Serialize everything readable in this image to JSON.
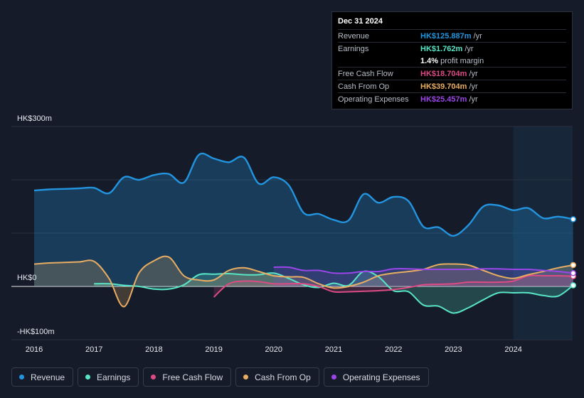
{
  "chart_data": {
    "type": "area",
    "x": [
      2016.0,
      2016.25,
      2016.5,
      2016.75,
      2017.0,
      2017.25,
      2017.5,
      2017.75,
      2018.0,
      2018.25,
      2018.5,
      2018.75,
      2019.0,
      2019.25,
      2019.5,
      2019.75,
      2020.0,
      2020.25,
      2020.5,
      2020.75,
      2021.0,
      2021.25,
      2021.5,
      2021.75,
      2022.0,
      2022.25,
      2022.5,
      2022.75,
      2023.0,
      2023.25,
      2023.5,
      2023.75,
      2024.0,
      2024.25,
      2024.5,
      2024.75,
      2025.0
    ],
    "series": [
      {
        "name": "Revenue",
        "color": "#2394df",
        "values": [
          180,
          182,
          183,
          184,
          185,
          175,
          205,
          200,
          209,
          211,
          195,
          247,
          240,
          233,
          242,
          193,
          205,
          190,
          138,
          136,
          125,
          124,
          173,
          157,
          168,
          160,
          112,
          111,
          95,
          115,
          150,
          152,
          143,
          147,
          128,
          131,
          126
        ]
      },
      {
        "name": "Earnings",
        "color": "#58e5c6",
        "values": [
          null,
          null,
          null,
          null,
          5,
          5,
          2,
          0,
          -5,
          -5,
          3,
          22,
          23,
          24,
          22,
          22,
          25,
          15,
          3,
          -2,
          6,
          2,
          28,
          18,
          -8,
          -10,
          -35,
          -37,
          -50,
          -40,
          -25,
          -12,
          -12,
          -12,
          -17,
          -18,
          2
        ]
      },
      {
        "name": "Free Cash Flow",
        "color": "#dd4b84",
        "values": [
          null,
          null,
          null,
          null,
          null,
          null,
          null,
          null,
          null,
          null,
          null,
          null,
          -20,
          5,
          10,
          9,
          5,
          5,
          5,
          0,
          -10,
          -10,
          -9,
          -8,
          -6,
          -2,
          3,
          4,
          5,
          8,
          8,
          8,
          10,
          20,
          20,
          20,
          19
        ]
      },
      {
        "name": "Cash From Op",
        "color": "#e9ad62",
        "values": [
          42,
          44,
          45,
          46,
          47,
          15,
          -38,
          25,
          48,
          55,
          20,
          12,
          12,
          30,
          35,
          28,
          20,
          18,
          17,
          5,
          -3,
          0,
          8,
          20,
          25,
          28,
          32,
          41,
          42,
          40,
          30,
          20,
          15,
          22,
          28,
          35,
          40
        ]
      },
      {
        "name": "Operating Expenses",
        "color": "#9b46e8",
        "values": [
          null,
          null,
          null,
          null,
          null,
          null,
          null,
          null,
          null,
          null,
          null,
          null,
          null,
          null,
          null,
          null,
          36,
          36,
          30,
          30,
          25,
          25,
          28,
          28,
          33,
          33,
          32,
          32,
          32,
          32,
          33,
          33,
          32,
          32,
          30,
          28,
          25
        ]
      }
    ],
    "x_ticks": [
      "2016",
      "2017",
      "2018",
      "2019",
      "2020",
      "2021",
      "2022",
      "2023",
      "2024"
    ],
    "y_labels": [
      "HK$300m",
      "HK$0",
      "-HK$100m"
    ],
    "ylim": [
      -100,
      300
    ],
    "xlim": [
      2015.6,
      2025.0
    ],
    "forecast_start": 2024.0
  },
  "tooltip": {
    "date": "Dec 31 2024",
    "rows": [
      {
        "label": "Revenue",
        "value": "HK$125.887m",
        "unit": "/yr",
        "color": "#2394df"
      },
      {
        "label": "Earnings",
        "value": "HK$1.762m",
        "unit": "/yr",
        "color": "#58e5c6"
      },
      {
        "label": "",
        "value": "1.4%",
        "unit": "profit margin",
        "color": "#ffffff"
      },
      {
        "label": "Free Cash Flow",
        "value": "HK$18.704m",
        "unit": "/yr",
        "color": "#dd4b84"
      },
      {
        "label": "Cash From Op",
        "value": "HK$39.704m",
        "unit": "/yr",
        "color": "#e9ad62"
      },
      {
        "label": "Operating Expenses",
        "value": "HK$25.457m",
        "unit": "/yr",
        "color": "#9b46e8"
      }
    ]
  },
  "legend": [
    {
      "label": "Revenue",
      "color": "#2394df"
    },
    {
      "label": "Earnings",
      "color": "#58e5c6"
    },
    {
      "label": "Free Cash Flow",
      "color": "#dd4b84"
    },
    {
      "label": "Cash From Op",
      "color": "#e9ad62"
    },
    {
      "label": "Operating Expenses",
      "color": "#9b46e8"
    }
  ]
}
